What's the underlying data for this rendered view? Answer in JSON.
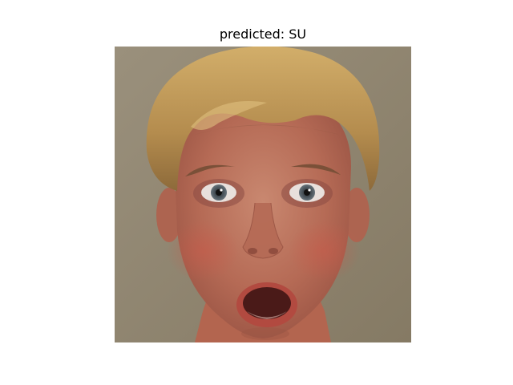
{
  "figure": {
    "title": "predicted: SU"
  },
  "image": {
    "subject": "face-photo",
    "colors": {
      "background": "#8f8570",
      "hair": "#c09a5a",
      "skin": "#b9705a",
      "mouth": "#4a1a18"
    }
  }
}
